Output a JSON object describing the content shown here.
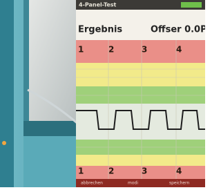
{
  "header": {
    "title": "4-Panel-Test",
    "heading": "Ergebnis",
    "offset": "Offser 0.0P"
  },
  "top_labels": [
    "1",
    "2",
    "3",
    "4"
  ],
  "bottom_labels": [
    "1",
    "2",
    "3",
    "4"
  ],
  "buttons": [
    "abbrechen",
    "modi",
    "speichern"
  ]
}
